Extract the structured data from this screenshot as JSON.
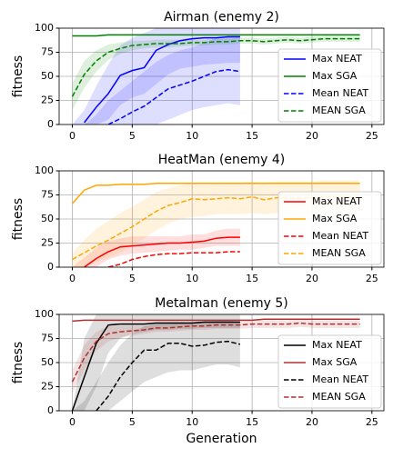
{
  "chart_data": [
    {
      "type": "line",
      "title": "Airman (enemy 2)",
      "title_color": "#0000ff",
      "ylabel": "fitness",
      "x": [
        0,
        1,
        2,
        3,
        4,
        5,
        6,
        7,
        8,
        9,
        10,
        11,
        12,
        13,
        14,
        15,
        16,
        17,
        18,
        19,
        20,
        21,
        22,
        23,
        24
      ],
      "xlim": [
        -1.1,
        26
      ],
      "xticks": [
        0,
        5,
        10,
        15,
        20,
        25
      ],
      "ylim": [
        0,
        100
      ],
      "yticks": [
        0,
        25,
        50,
        75,
        100
      ],
      "grid": true,
      "legend": "lower right",
      "series": [
        {
          "name": "Max NEAT",
          "color": "#0000ff",
          "dash": false,
          "values": [
            null,
            2,
            18,
            32,
            51,
            56,
            59,
            77,
            83,
            87,
            89,
            90,
            90,
            91,
            91,
            null,
            null,
            null,
            null,
            null,
            null,
            null,
            null,
            null,
            null
          ],
          "lower": [
            0,
            0,
            0,
            5,
            20,
            28,
            32,
            42,
            52,
            58,
            60,
            62,
            63,
            64,
            64,
            null,
            null,
            null,
            null,
            null,
            null,
            null,
            null,
            null,
            null
          ],
          "upper": [
            0,
            15,
            40,
            62,
            82,
            90,
            95,
            100,
            100,
            100,
            100,
            100,
            100,
            100,
            100,
            null,
            null,
            null,
            null,
            null,
            null,
            null,
            null,
            null,
            null
          ]
        },
        {
          "name": "Max SGA",
          "color": "#008000",
          "dash": false,
          "values": [
            92,
            92,
            92,
            93,
            93,
            93,
            93,
            93,
            93,
            93,
            93,
            93,
            93,
            93,
            93,
            93,
            93,
            93,
            93,
            93,
            93,
            93,
            93,
            93,
            93
          ]
        },
        {
          "name": "Mean NEAT",
          "color": "#0000ff",
          "dash": true,
          "values": [
            null,
            null,
            null,
            0,
            6,
            13,
            19,
            28,
            37,
            41,
            45,
            50,
            55,
            57,
            55,
            null,
            null,
            null,
            null,
            null,
            null,
            null,
            null,
            null,
            null
          ],
          "lower": [
            0,
            0,
            0,
            0,
            0,
            0,
            0,
            0,
            5,
            10,
            15,
            18,
            20,
            22,
            20,
            null,
            null,
            null,
            null,
            null,
            null,
            null,
            null,
            null,
            null
          ],
          "upper": [
            0,
            0,
            10,
            25,
            35,
            45,
            55,
            65,
            72,
            77,
            80,
            85,
            90,
            92,
            92,
            null,
            null,
            null,
            null,
            null,
            null,
            null,
            null,
            null,
            null
          ]
        },
        {
          "name": "MEAN SGA",
          "color": "#008000",
          "dash": true,
          "values": [
            29,
            52,
            66,
            75,
            79,
            82,
            83,
            84,
            84,
            84,
            85,
            85,
            86,
            86,
            87,
            87,
            86,
            87,
            88,
            87,
            88,
            89,
            89,
            89,
            89
          ],
          "lower": [
            15,
            38,
            55,
            67,
            73,
            77,
            79,
            80,
            80,
            81,
            82,
            82,
            83,
            83,
            84,
            84,
            83,
            84,
            85,
            84,
            85,
            86,
            86,
            86,
            86
          ],
          "upper": [
            43,
            66,
            77,
            83,
            85,
            87,
            87,
            88,
            88,
            88,
            88,
            88,
            89,
            89,
            90,
            90,
            89,
            90,
            91,
            90,
            91,
            92,
            92,
            92,
            92
          ]
        }
      ]
    },
    {
      "type": "line",
      "title": "HeatMan (enemy 4)",
      "title_color": "#ff0000",
      "ylabel": "fitness",
      "x": [
        0,
        1,
        2,
        3,
        4,
        5,
        6,
        7,
        8,
        9,
        10,
        11,
        12,
        13,
        14,
        15,
        16,
        17,
        18,
        19,
        20,
        21,
        22,
        23,
        24
      ],
      "xlim": [
        -1.1,
        26
      ],
      "xticks": [
        0,
        5,
        10,
        15,
        20,
        25
      ],
      "ylim": [
        0,
        100
      ],
      "yticks": [
        0,
        25,
        50,
        75,
        100
      ],
      "grid": true,
      "legend": "lower right",
      "series": [
        {
          "name": "Max NEAT",
          "color": "#ff0000",
          "dash": false,
          "values": [
            null,
            0,
            9,
            16,
            21,
            22,
            23,
            24,
            25,
            25,
            26,
            27,
            30,
            31,
            31,
            null,
            null,
            null,
            null,
            null,
            null,
            null,
            null,
            null,
            null
          ],
          "lower": [
            0,
            0,
            0,
            8,
            12,
            14,
            15,
            16,
            17,
            18,
            18,
            20,
            22,
            22,
            22,
            null,
            null,
            null,
            null,
            null,
            null,
            null,
            null,
            null,
            null
          ],
          "upper": [
            0,
            10,
            20,
            27,
            30,
            32,
            32,
            32,
            32,
            32,
            34,
            34,
            38,
            40,
            40,
            null,
            null,
            null,
            null,
            null,
            null,
            null,
            null,
            null,
            null
          ]
        },
        {
          "name": "Max SGA",
          "color": "#ffa500",
          "dash": false,
          "values": [
            66,
            80,
            85,
            85,
            86,
            86,
            86,
            87,
            87,
            87,
            87,
            87,
            87,
            87,
            87,
            87,
            87,
            87,
            87,
            87,
            87,
            87,
            87,
            87,
            87
          ]
        },
        {
          "name": "Mean NEAT",
          "color": "#ff0000",
          "dash": true,
          "values": [
            null,
            null,
            null,
            0,
            3,
            8,
            11,
            13,
            14,
            14,
            15,
            15,
            15,
            16,
            16,
            null,
            null,
            null,
            null,
            null,
            null,
            null,
            null,
            null,
            null
          ]
        },
        {
          "name": "MEAN SGA",
          "color": "#ffa500",
          "dash": true,
          "values": [
            8,
            15,
            22,
            28,
            35,
            42,
            50,
            58,
            64,
            67,
            71,
            70,
            71,
            72,
            71,
            73,
            70,
            72,
            72,
            72,
            72,
            73,
            73,
            73,
            73
          ],
          "lower": [
            0,
            0,
            5,
            10,
            15,
            22,
            30,
            38,
            45,
            50,
            52,
            53,
            55,
            55,
            55,
            56,
            55,
            56,
            56,
            57,
            57,
            57,
            57,
            58,
            58
          ],
          "upper": [
            15,
            28,
            40,
            48,
            56,
            63,
            70,
            78,
            82,
            85,
            88,
            87,
            88,
            88,
            88,
            89,
            88,
            89,
            89,
            89,
            89,
            90,
            90,
            90,
            90
          ]
        }
      ]
    },
    {
      "type": "line",
      "title": "Metalman (enemy 5)",
      "title_color": "#000000",
      "ylabel": "fitness",
      "xlabel": "Generation",
      "x": [
        0,
        1,
        2,
        3,
        4,
        5,
        6,
        7,
        8,
        9,
        10,
        11,
        12,
        13,
        14,
        15,
        16,
        17,
        18,
        19,
        20,
        21,
        22,
        23,
        24
      ],
      "xlim": [
        -1.1,
        26
      ],
      "xticks": [
        0,
        5,
        10,
        15,
        20,
        25
      ],
      "ylim": [
        0,
        100
      ],
      "yticks": [
        0,
        25,
        50,
        75,
        100
      ],
      "grid": true,
      "legend": "lower right",
      "series": [
        {
          "name": "Max NEAT",
          "color": "#000000",
          "dash": false,
          "values": [
            0,
            35,
            70,
            89,
            90,
            90,
            90,
            91,
            91,
            91,
            91,
            92,
            92,
            92,
            92,
            null,
            null,
            null,
            null,
            null,
            null,
            null,
            null,
            null,
            null
          ],
          "lower": [
            0,
            0,
            25,
            60,
            75,
            80,
            82,
            84,
            84,
            85,
            85,
            86,
            86,
            86,
            86,
            null,
            null,
            null,
            null,
            null,
            null,
            null,
            null,
            null,
            null
          ],
          "upper": [
            0,
            75,
            100,
            100,
            100,
            100,
            100,
            100,
            100,
            100,
            100,
            100,
            100,
            100,
            100,
            null,
            null,
            null,
            null,
            null,
            null,
            null,
            null,
            null,
            null
          ]
        },
        {
          "name": "Max SGA",
          "color": "#b03030",
          "dash": false,
          "values": [
            93,
            94,
            94,
            94,
            94,
            94,
            94,
            94,
            94,
            94,
            94,
            94,
            94,
            94,
            94,
            94,
            95,
            95,
            95,
            95,
            95,
            95,
            95,
            95,
            95
          ]
        },
        {
          "name": "Mean NEAT",
          "color": "#000000",
          "dash": true,
          "values": [
            null,
            null,
            0,
            15,
            35,
            50,
            63,
            63,
            70,
            70,
            67,
            68,
            71,
            72,
            69,
            null,
            null,
            null,
            null,
            null,
            null,
            null,
            null,
            null,
            null
          ],
          "lower": [
            0,
            0,
            0,
            0,
            10,
            20,
            30,
            35,
            40,
            42,
            42,
            45,
            48,
            48,
            45,
            null,
            null,
            null,
            null,
            null,
            null,
            null,
            null,
            null,
            null
          ],
          "upper": [
            0,
            10,
            30,
            50,
            68,
            80,
            88,
            90,
            92,
            92,
            92,
            93,
            93,
            94,
            92,
            null,
            null,
            null,
            null,
            null,
            null,
            null,
            null,
            null,
            null
          ]
        },
        {
          "name": "MEAN SGA",
          "color": "#b03030",
          "dash": true,
          "values": [
            30,
            55,
            72,
            80,
            82,
            83,
            84,
            86,
            86,
            87,
            88,
            88,
            89,
            89,
            89,
            90,
            90,
            90,
            90,
            91,
            90,
            90,
            90,
            90,
            90
          ],
          "lower": [
            18,
            42,
            62,
            72,
            76,
            78,
            80,
            82,
            82,
            83,
            84,
            84,
            85,
            85,
            85,
            86,
            86,
            86,
            86,
            87,
            86,
            86,
            86,
            86,
            86
          ],
          "upper": [
            42,
            68,
            82,
            88,
            88,
            88,
            88,
            90,
            90,
            91,
            92,
            92,
            93,
            93,
            93,
            94,
            94,
            94,
            94,
            95,
            94,
            94,
            94,
            94,
            94
          ]
        }
      ]
    }
  ]
}
